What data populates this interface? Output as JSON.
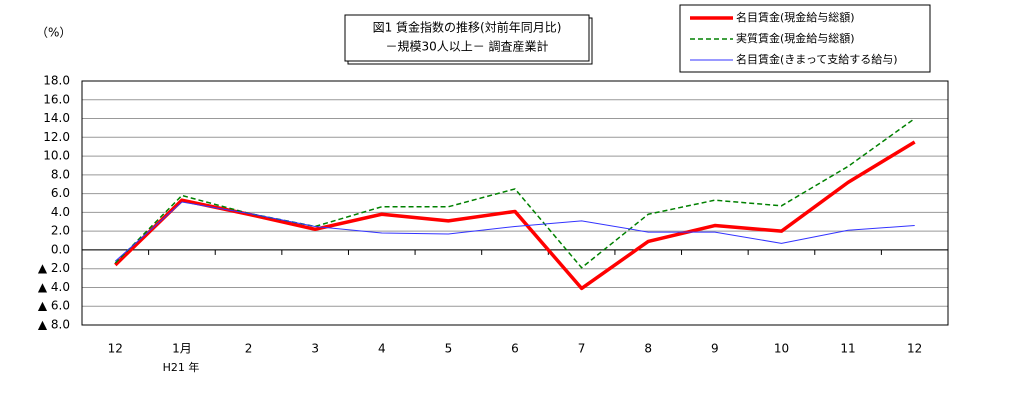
{
  "chart_data": {
    "type": "line",
    "title": "図1 賃金指数の推移(対前年同月比)",
    "subtitle": "－規模30人以上－ 調査産業計",
    "y_label": "（%）",
    "annotation": "H21 年",
    "categories": [
      "12",
      "1月",
      "2",
      "3",
      "4",
      "5",
      "6",
      "7",
      "8",
      "9",
      "10",
      "11",
      "12"
    ],
    "series": [
      {
        "name": "名目賃金(現金給与総額)",
        "color": "#ff0000",
        "line_style": "solid",
        "line_width": 3.5,
        "values": [
          -1.6,
          5.3,
          3.8,
          2.2,
          3.8,
          3.1,
          4.1,
          -4.1,
          0.9,
          2.6,
          2.0,
          7.2,
          11.5
        ]
      },
      {
        "name": "実質賃金(現金給与総額)",
        "color": "#008000",
        "line_style": "dashed",
        "line_width": 1.5,
        "values": [
          -1.4,
          5.8,
          3.9,
          2.5,
          4.6,
          4.6,
          6.5,
          -1.9,
          3.8,
          5.3,
          4.7,
          8.9,
          14.0
        ]
      },
      {
        "name": "名目賃金(きまって支給する給与)",
        "color": "#3333ff",
        "line_style": "solid",
        "line_width": 1,
        "values": [
          -1.2,
          5.1,
          3.9,
          2.5,
          1.8,
          1.7,
          2.5,
          3.1,
          1.9,
          1.9,
          0.7,
          2.1,
          2.6
        ]
      }
    ],
    "ylim": [
      -8,
      18
    ],
    "yticks": [
      {
        "value": 18,
        "label": "18.0"
      },
      {
        "value": 16,
        "label": "16.0"
      },
      {
        "value": 14,
        "label": "14.0"
      },
      {
        "value": 12,
        "label": "12.0"
      },
      {
        "value": 10,
        "label": "10.0"
      },
      {
        "value": 8,
        "label": "8.0"
      },
      {
        "value": 6,
        "label": "6.0"
      },
      {
        "value": 4,
        "label": "4.0"
      },
      {
        "value": 2,
        "label": "2.0"
      },
      {
        "value": 0,
        "label": "0.0"
      },
      {
        "value": -2,
        "label": "▲ 2.0"
      },
      {
        "value": -4,
        "label": "▲ 4.0"
      },
      {
        "value": -6,
        "label": "▲ 6.0"
      },
      {
        "value": -8,
        "label": "▲ 8.0"
      }
    ],
    "grid": true
  }
}
